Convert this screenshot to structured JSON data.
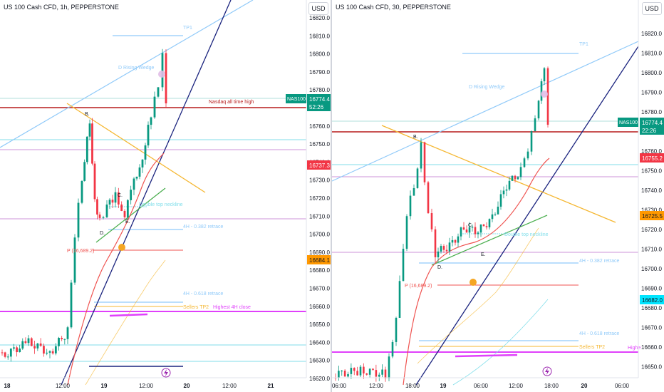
{
  "charts": [
    {
      "title": "US 100 Cash CFD, 1h, PEPPERSTONE",
      "currency": "USD",
      "price_ticks": [
        "16820.0",
        "16810.0",
        "16800.0",
        "16790.0",
        "16780.0",
        "16770.0",
        "16760.0",
        "16750.0",
        "16740.0",
        "16730.0",
        "16720.0",
        "16710.0",
        "16700.0",
        "16690.0",
        "16680.0",
        "16670.0",
        "16660.0",
        "16650.0",
        "16640.0",
        "16630.0",
        "16620.0"
      ],
      "time_ticks": [
        "18",
        "12:00",
        "19",
        "12:00",
        "20",
        "12:00",
        "21"
      ],
      "badges": {
        "symbol": "NAS100",
        "price": "16774.4",
        "countdown": "52:26",
        "red_level": "16737.3",
        "orange_level": "16684.1"
      },
      "annotations": {
        "tp1": "TP1",
        "rising_wedge": "D Rising Wedge",
        "ath": "Nasdaq all time high",
        "point_b": "B.",
        "point_c": "C.",
        "point_d": "D.",
        "point_e": "E.",
        "neckline": "Double top neckline",
        "retrace_382": "4H - 0.382 retrace",
        "pivot": "P (16,689.2)",
        "retrace_618": "4H - 0.618 retrace",
        "sellers_tp2": "Sellers TP2",
        "highest_close": "Highest 4H close"
      }
    },
    {
      "title": "US 100 Cash CFD, 30, PEPPERSTONE",
      "currency": "USD",
      "price_ticks": [
        "16820.0",
        "16810.0",
        "16800.0",
        "16790.0",
        "16780.0",
        "16770.0",
        "16760.0",
        "16750.0",
        "16740.0",
        "16730.0",
        "16720.0",
        "16710.0",
        "16700.0",
        "16690.0",
        "16680.0",
        "16670.0",
        "16660.0",
        "16650.0"
      ],
      "time_ticks": [
        "06:00",
        "12:00",
        "18:00",
        "19",
        "06:00",
        "12:00",
        "18:00",
        "20",
        "06:00"
      ],
      "badges": {
        "symbol": "NAS100",
        "price": "16774.4",
        "countdown": "22:26",
        "red_level": "16755.2",
        "orange_level": "16725.5",
        "cyan_level": "16682.0"
      },
      "annotations": {
        "tp1": "TP1",
        "rising_wedge": "D Rising Wedge",
        "point_b": "B.",
        "point_c": "C.",
        "point_d": "D.",
        "point_e": "E.",
        "neckline": "Double top neckline",
        "retrace_382": "4H - 0.382 retrace",
        "pivot": "P (16,689.2)",
        "retrace_618": "4H - 0.618 retrace",
        "sellers_tp2": "Sellers TP2",
        "highest_close": "Highe"
      }
    }
  ],
  "colors": {
    "bull": "#089981",
    "bear": "#f23645",
    "wedge": "#8fb8e6",
    "trend": "#1a237e",
    "ath": "#b71c1c",
    "orange": "#f5b731",
    "magenta": "#e040fb"
  }
}
